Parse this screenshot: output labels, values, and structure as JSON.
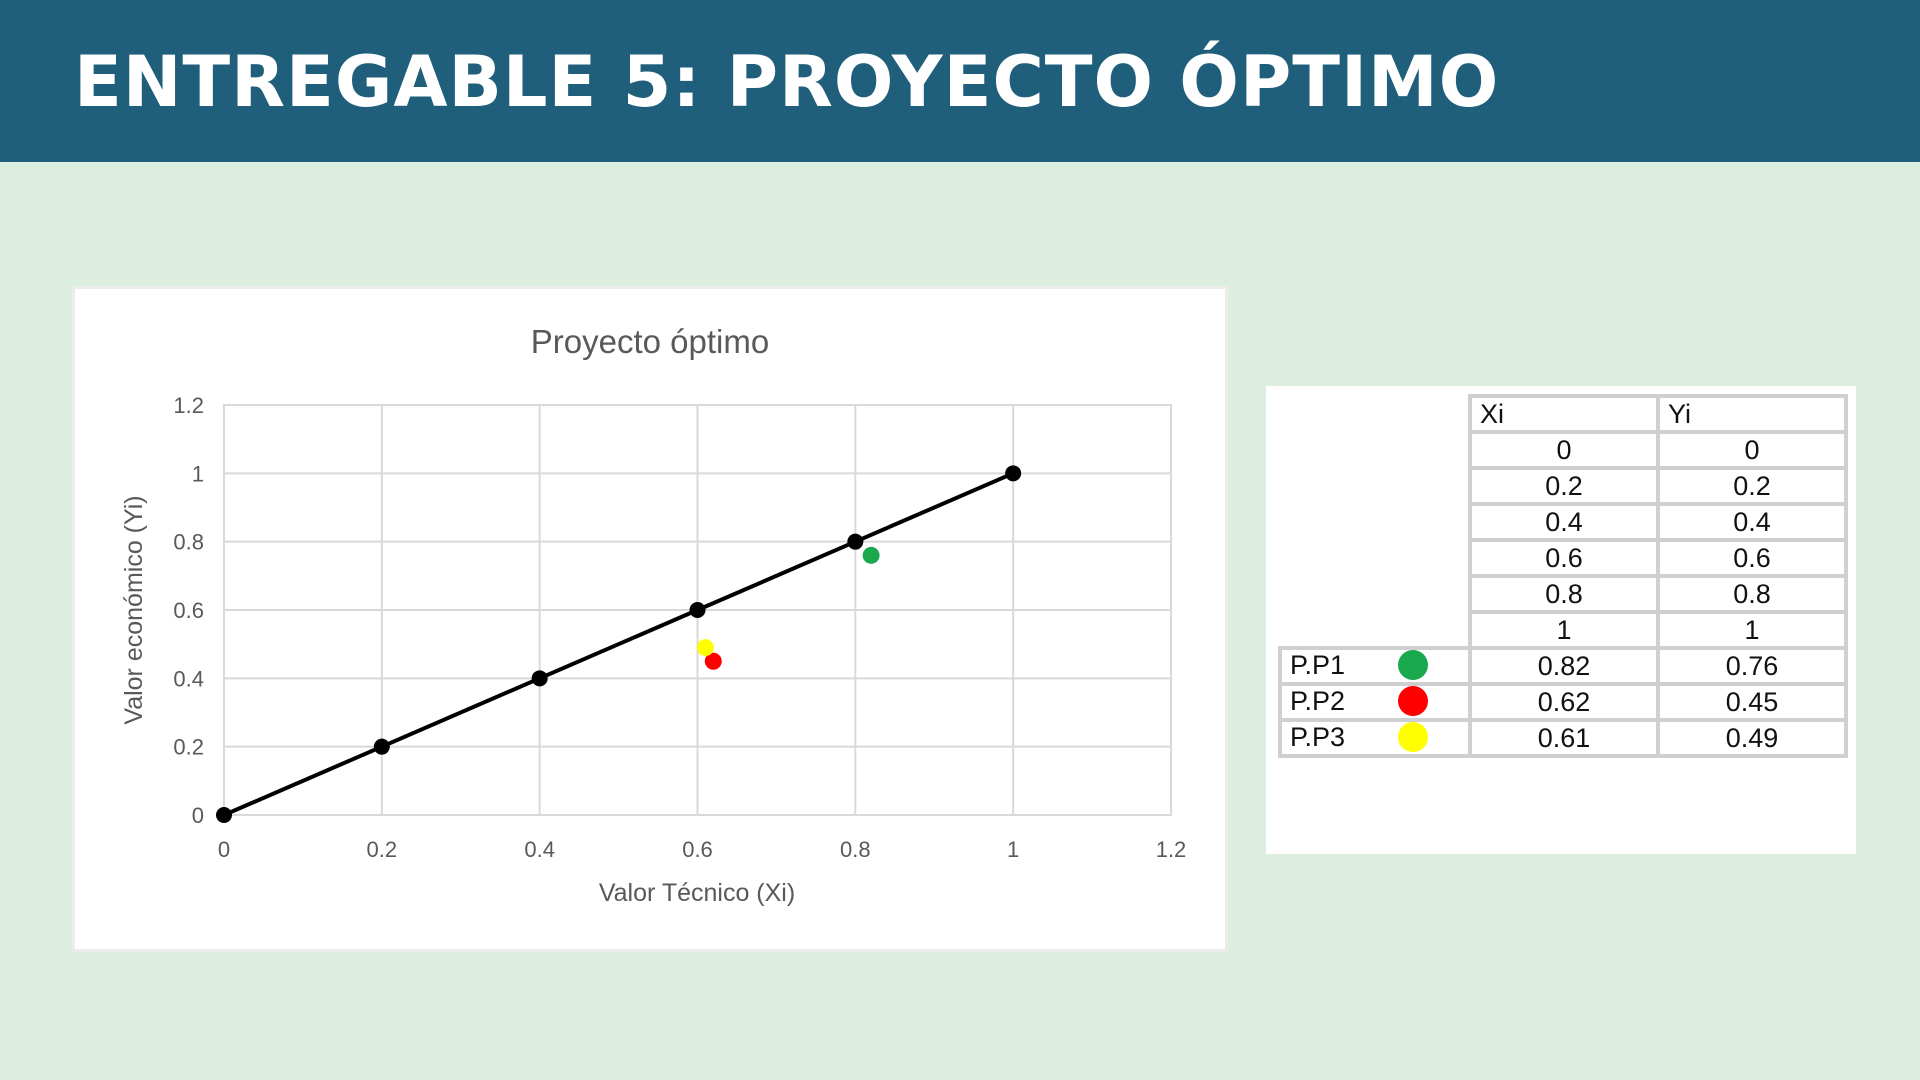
{
  "header": {
    "title": "ENTREGABLE 5: PROYECTO ÓPTIMO"
  },
  "chart_data": {
    "type": "scatter",
    "title": "Proyecto óptimo",
    "xlabel": "Valor Técnico (Xi)",
    "ylabel": "Valor económico (Yi)",
    "xlim": [
      0,
      1.2
    ],
    "ylim": [
      0,
      1.2
    ],
    "xticks": [
      "0",
      "0.2",
      "0.4",
      "0.6",
      "0.8",
      "1",
      "1.2"
    ],
    "yticks": [
      "0",
      "0.2",
      "0.4",
      "0.6",
      "0.8",
      "1",
      "1.2"
    ],
    "grid": true,
    "series": [
      {
        "x": [
          0,
          0.2,
          0.4,
          0.6,
          0.8,
          1
        ],
        "y": [
          0,
          0.2,
          0.4,
          0.6,
          0.8,
          1
        ],
        "color": "#000000",
        "line": true
      },
      {
        "name": "P.P1",
        "x": [
          0.82
        ],
        "y": [
          0.76
        ],
        "color": "#1aa84f",
        "line": false
      },
      {
        "name": "P.P2",
        "x": [
          0.62
        ],
        "y": [
          0.45
        ],
        "color": "#ff0000",
        "line": false
      },
      {
        "name": "P.P3",
        "x": [
          0.61
        ],
        "y": [
          0.49
        ],
        "color": "#ffff00",
        "line": false
      }
    ]
  },
  "table": {
    "headers": [
      "Xi",
      "Yi"
    ],
    "rows": [
      {
        "label": "",
        "xi": "0",
        "yi": "0"
      },
      {
        "label": "",
        "xi": "0.2",
        "yi": "0.2"
      },
      {
        "label": "",
        "xi": "0.4",
        "yi": "0.4"
      },
      {
        "label": "",
        "xi": "0.6",
        "yi": "0.6"
      },
      {
        "label": "",
        "xi": "0.8",
        "yi": "0.8"
      },
      {
        "label": "",
        "xi": "1",
        "yi": "1"
      },
      {
        "label": "P.P1",
        "xi": "0.82",
        "yi": "0.76",
        "color": "#1aa84f"
      },
      {
        "label": "P.P2",
        "xi": "0.62",
        "yi": "0.45",
        "color": "#ff0000"
      },
      {
        "label": "P.P3",
        "xi": "0.61",
        "yi": "0.49",
        "color": "#ffff00"
      }
    ]
  }
}
